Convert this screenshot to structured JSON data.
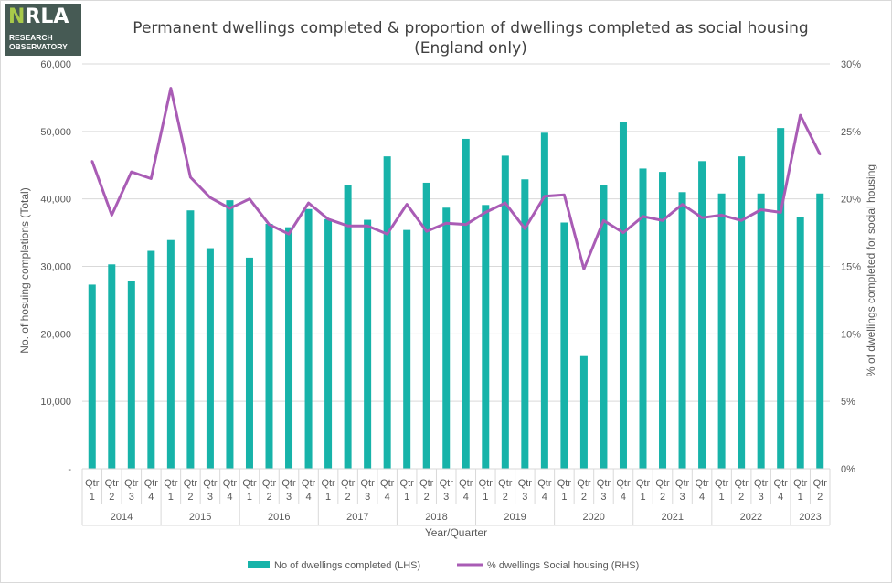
{
  "logo": {
    "text_accent": "N",
    "text_rest": "RLA",
    "line1": "RESEARCH",
    "line2": "OBSERVATORY"
  },
  "chart_data": {
    "type": "bar+line",
    "title_line1": "Permanent dwellings completed & proportion of dwellings completed as social housing",
    "title_line2": "(England only)",
    "xlabel": "Year/Quarter",
    "ylabel_left": "No. of hosuing completions (Total)",
    "ylabel_right": "% of dwellings completed for social housing",
    "ylim_left": [
      0,
      60000
    ],
    "ylim_right": [
      0,
      30
    ],
    "left_ticks": [
      "-",
      "10,000",
      "20,000",
      "30,000",
      "40,000",
      "50,000",
      "60,000"
    ],
    "right_ticks": [
      "0%",
      "5%",
      "10%",
      "15%",
      "20%",
      "25%",
      "30%"
    ],
    "quarter_labels": [
      "Qtr 1",
      "Qtr 2",
      "Qtr 3",
      "Qtr 4",
      "Qtr 1",
      "Qtr 2",
      "Qtr 3",
      "Qtr 4",
      "Qtr 1",
      "Qtr 2",
      "Qtr 3",
      "Qtr 4",
      "Qtr 1",
      "Qtr 2",
      "Qtr 3",
      "Qtr 4",
      "Qtr 1",
      "Qtr 2",
      "Qtr 3",
      "Qtr 4",
      "Qtr 1",
      "Qtr 2",
      "Qtr 3",
      "Qtr 4",
      "Qtr 1",
      "Qtr 2",
      "Qtr 3",
      "Qtr 4",
      "Qtr 1",
      "Qtr 2",
      "Qtr 3",
      "Qtr 4",
      "Qtr 1",
      "Qtr 2",
      "Qtr 3",
      "Qtr 4",
      "Qtr 1",
      "Qtr 2"
    ],
    "year_groups": [
      {
        "label": "2014",
        "count": 4
      },
      {
        "label": "2015",
        "count": 4
      },
      {
        "label": "2016",
        "count": 4
      },
      {
        "label": "2017",
        "count": 4
      },
      {
        "label": "2018",
        "count": 4
      },
      {
        "label": "2019",
        "count": 4
      },
      {
        "label": "2020",
        "count": 4
      },
      {
        "label": "2021",
        "count": 4
      },
      {
        "label": "2022",
        "count": 4
      },
      {
        "label": "2023",
        "count": 2
      }
    ],
    "series": [
      {
        "name": "No of dwellings completed (LHS)",
        "type": "bar",
        "axis": "left",
        "color": "#17b3a9",
        "values": [
          27300,
          30300,
          27800,
          32300,
          33900,
          38300,
          32700,
          39800,
          31300,
          36300,
          35800,
          38500,
          37000,
          42100,
          36900,
          46300,
          35400,
          42400,
          38700,
          48900,
          39100,
          46400,
          42900,
          49800,
          36500,
          16700,
          42000,
          51400,
          44500,
          44000,
          41000,
          45600,
          40800,
          46300,
          40800,
          50500,
          37300,
          40800
        ]
      },
      {
        "name": "% dwellings Social housing (RHS)",
        "type": "line",
        "axis": "right",
        "color": "#a95cb5",
        "values": [
          22.8,
          18.8,
          22.0,
          21.5,
          28.2,
          21.6,
          20.1,
          19.3,
          20.0,
          18.1,
          17.4,
          19.7,
          18.5,
          18.0,
          18.0,
          17.4,
          19.6,
          17.6,
          18.2,
          18.1,
          19.0,
          19.7,
          17.8,
          20.2,
          20.3,
          14.8,
          18.4,
          17.5,
          18.7,
          18.4,
          19.6,
          18.6,
          18.8,
          18.4,
          19.2,
          19.0,
          26.2,
          23.3
        ]
      }
    ],
    "legend_position": "bottom"
  }
}
